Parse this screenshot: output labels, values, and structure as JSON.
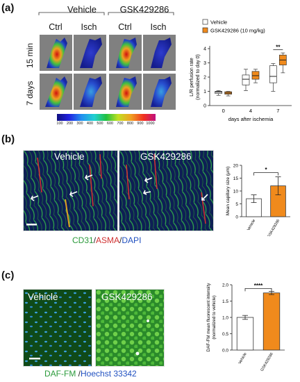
{
  "panels": {
    "a": {
      "label": "(a)",
      "group_headers": [
        "Vehicle",
        "GSK429286"
      ],
      "column_headers": [
        "Ctrl",
        "Isch",
        "Ctrl",
        "Isch"
      ],
      "row_labels": [
        "15 min",
        "7 days"
      ],
      "colorbar_ticks": [
        "100",
        "200",
        "300",
        "400",
        "500",
        "600",
        "700",
        "800",
        "900",
        "1000"
      ]
    },
    "b": {
      "label": "(b)",
      "image_titles": [
        "Vehicle",
        "GSK429286"
      ],
      "stain_caption": {
        "part1": "CD31",
        "sep1": "/",
        "part2": "ASMA",
        "sep2": "/",
        "part3": "DAPI"
      }
    },
    "c": {
      "label": "(c)",
      "image_titles": [
        "Vehicle",
        "GSK429286"
      ],
      "stain_caption": {
        "part1": "DAF-FM",
        "sep": " /",
        "part2": "Hoechst 33342"
      }
    }
  },
  "chart_data": [
    {
      "type": "box",
      "ylabel_line1": "L/R perfusion rate",
      "ylabel_line2": "(normalized to day 0)",
      "xlabel": "days after ischemia",
      "categories": [
        "0",
        "4",
        "7"
      ],
      "ylim": [
        0,
        4
      ],
      "yticks": [
        "0",
        "1",
        "2",
        "3",
        "4"
      ],
      "legend": [
        "Vehicle",
        "GSK429286 (10 mg/kg)"
      ],
      "significance": "**",
      "series": [
        {
          "name": "Vehicle",
          "color": "#ffffff",
          "boxes": [
            {
              "min": 0.72,
              "q1": 0.85,
              "median": 0.95,
              "q3": 1.0,
              "max": 1.05
            },
            {
              "min": 1.05,
              "q1": 1.45,
              "median": 1.85,
              "q3": 2.15,
              "max": 2.55
            },
            {
              "min": 1.0,
              "q1": 1.6,
              "median": 2.05,
              "q3": 2.8,
              "max": 2.95
            }
          ]
        },
        {
          "name": "GSK429286 (10 mg/kg)",
          "color": "#f08a1c",
          "boxes": [
            {
              "min": 0.68,
              "q1": 0.8,
              "median": 0.88,
              "q3": 0.97,
              "max": 1.0
            },
            {
              "min": 1.6,
              "q1": 1.85,
              "median": 2.1,
              "q3": 2.4,
              "max": 2.55
            },
            {
              "min": 2.3,
              "q1": 2.85,
              "median": 3.2,
              "q3": 3.55,
              "max": 3.7
            }
          ]
        }
      ]
    },
    {
      "type": "bar",
      "ylabel": "Mean capillary size (μm)",
      "categories": [
        "Vehicle",
        "GSK429286"
      ],
      "values": [
        7,
        12
      ],
      "errors": [
        1.5,
        3.5
      ],
      "colors": [
        "#ffffff",
        "#f08a1c"
      ],
      "ylim": [
        0,
        20
      ],
      "yticks": [
        "0",
        "5",
        "10",
        "15",
        "20"
      ],
      "significance": "*"
    },
    {
      "type": "bar",
      "ylabel_line1": "DAF-FM mean fluorescent intensity",
      "ylabel_line2": "(normalized to vehicle)",
      "categories": [
        "Vehicle",
        "GSK429286"
      ],
      "values": [
        1.0,
        1.75
      ],
      "errors": [
        0.06,
        0.05
      ],
      "colors": [
        "#ffffff",
        "#f08a1c"
      ],
      "ylim": [
        0,
        2.0
      ],
      "yticks": [
        "0.0",
        "0.5",
        "1.0",
        "1.5",
        "2.0"
      ],
      "significance": "****"
    }
  ]
}
